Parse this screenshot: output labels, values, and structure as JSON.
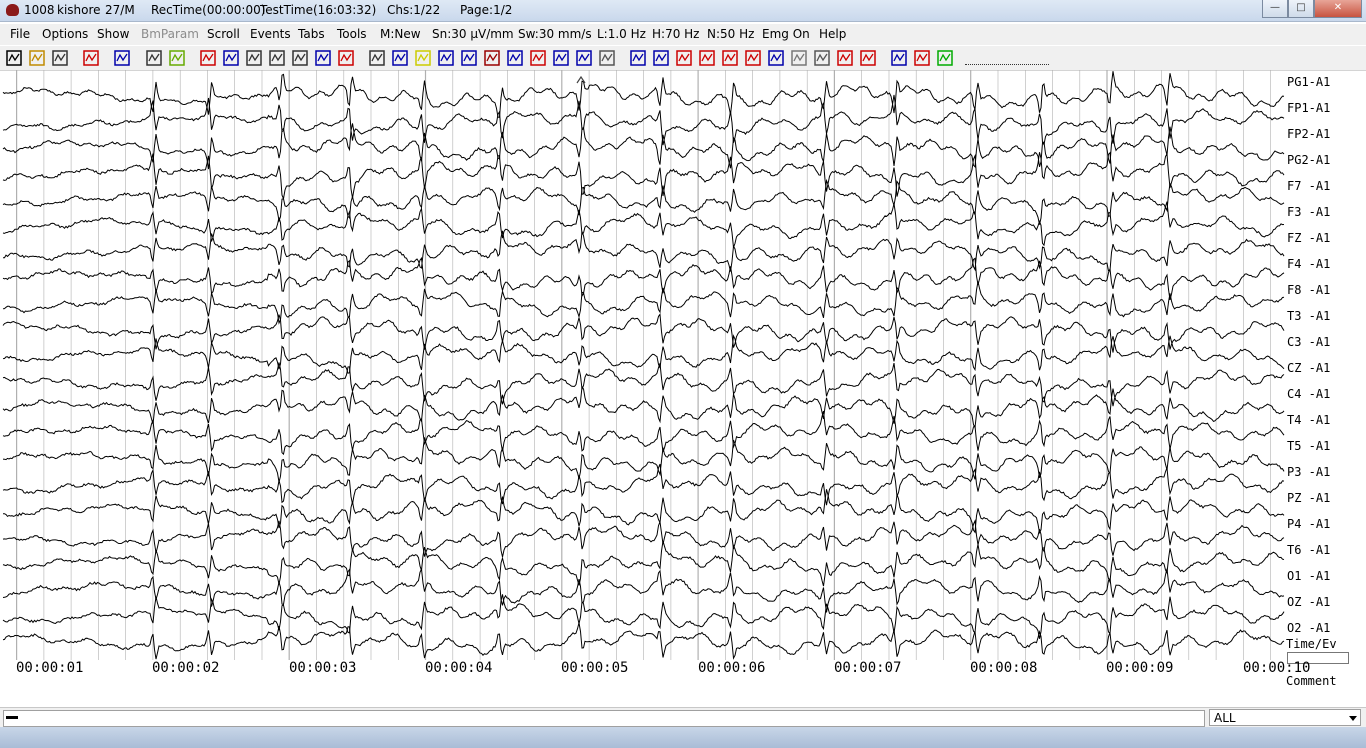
{
  "window": {
    "id": "1008",
    "patient": "kishore",
    "age_sex": "27/M",
    "rec_time": "RecTime(00:00:00)",
    "test_time": "TestTime(16:03:32)",
    "channels": "Chs:1/22",
    "page": "Page:1/2",
    "minimize": "—",
    "maximize": "□",
    "close": "✕"
  },
  "menu": {
    "file": "File",
    "options": "Options",
    "show": "Show",
    "bmparam": "BmParam",
    "scroll": "Scroll",
    "events": "Events",
    "tabs": "Tabs",
    "tools": "Tools",
    "montage": "M:New",
    "sensitivity": "Sn:30 µV/mm",
    "sweep": "Sw:30 mm/s",
    "lowcut": "L:1.0 Hz",
    "highcut": "H:70 Hz",
    "notch": "N:50 Hz",
    "emg": "Emg On",
    "help": "Help"
  },
  "toolbar_icons": [
    "patient-icon",
    "open-folder-icon",
    "print-icon",
    "impedance-omega-icon",
    "s2r-icon",
    "printer-icon",
    "chart-icon",
    "event-marker-icon",
    "rewind-icon",
    "page-back-icon",
    "binoculars-icon",
    "page-forward-icon",
    "fast-forward-icon",
    "event-jump-icon",
    "zoom-icon",
    "wave-compress-icon",
    "plus-icon",
    "wave-expand-icon",
    "circle-blue-icon",
    "photic-icon",
    "grid-icon",
    "spectrum-icon",
    "grid-fine-icon",
    "grid-dense-icon",
    "grid-gray-icon",
    "shrink-vertical-icon",
    "expand-vertical-icon",
    "nudge-right-icon",
    "nudge-left-icon",
    "lowpass-icon",
    "highpass-icon",
    "notch-icon",
    "video-icon",
    "globe-icon",
    "wave-red-icon",
    "pause-icon",
    "montage-icon",
    "montage-alt-icon",
    "refresh-icon"
  ],
  "channels": [
    "PG1-A1",
    "FP1-A1",
    "FP2-A1",
    "PG2-A1",
    "F7 -A1",
    "F3 -A1",
    "FZ -A1",
    "F4 -A1",
    "F8 -A1",
    "T3 -A1",
    "C3 -A1",
    "CZ -A1",
    "C4 -A1",
    "T4 -A1",
    "T5 -A1",
    "P3 -A1",
    "PZ -A1",
    "P4 -A1",
    "T6 -A1",
    "O1 -A1",
    "OZ -A1",
    "O2 -A1"
  ],
  "time_labels": [
    "00:00:01",
    "00:00:02",
    "00:00:03",
    "00:00:04",
    "00:00:05",
    "00:00:06",
    "00:00:07",
    "00:00:08",
    "00:00:09",
    "00:00:10"
  ],
  "right_panel": {
    "time_ev": "Time/Ev",
    "comment": "Comment"
  },
  "status": {
    "filter": "ALL"
  },
  "colors": {
    "trace": "#000000",
    "grid": "#b0b0b0",
    "background": "#ffffff"
  },
  "spike_times_sec": [
    2.01,
    2.42,
    2.94,
    3.45,
    3.98,
    4.55,
    5.14,
    5.73,
    6.25,
    6.93,
    7.45,
    8.04,
    8.52,
    9.03,
    9.45
  ]
}
